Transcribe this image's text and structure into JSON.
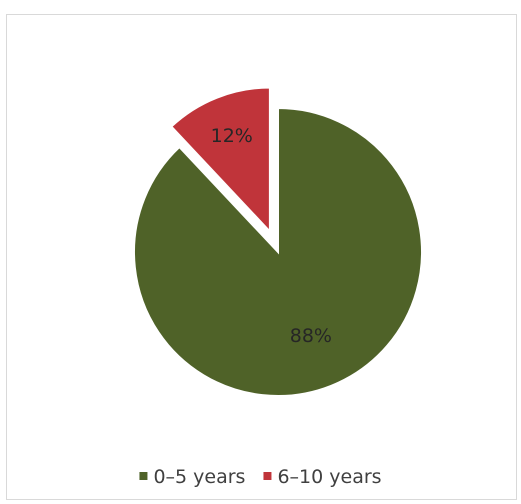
{
  "chart_data": {
    "type": "pie",
    "title": "",
    "slices": [
      {
        "name": "0–5 years",
        "value": 88,
        "label": "88%",
        "color": "#4f6228",
        "exploded": false
      },
      {
        "name": "6–10 years",
        "value": 12,
        "label": "12%",
        "color": "#c0343a",
        "exploded": true
      }
    ],
    "legend_position": "bottom"
  }
}
